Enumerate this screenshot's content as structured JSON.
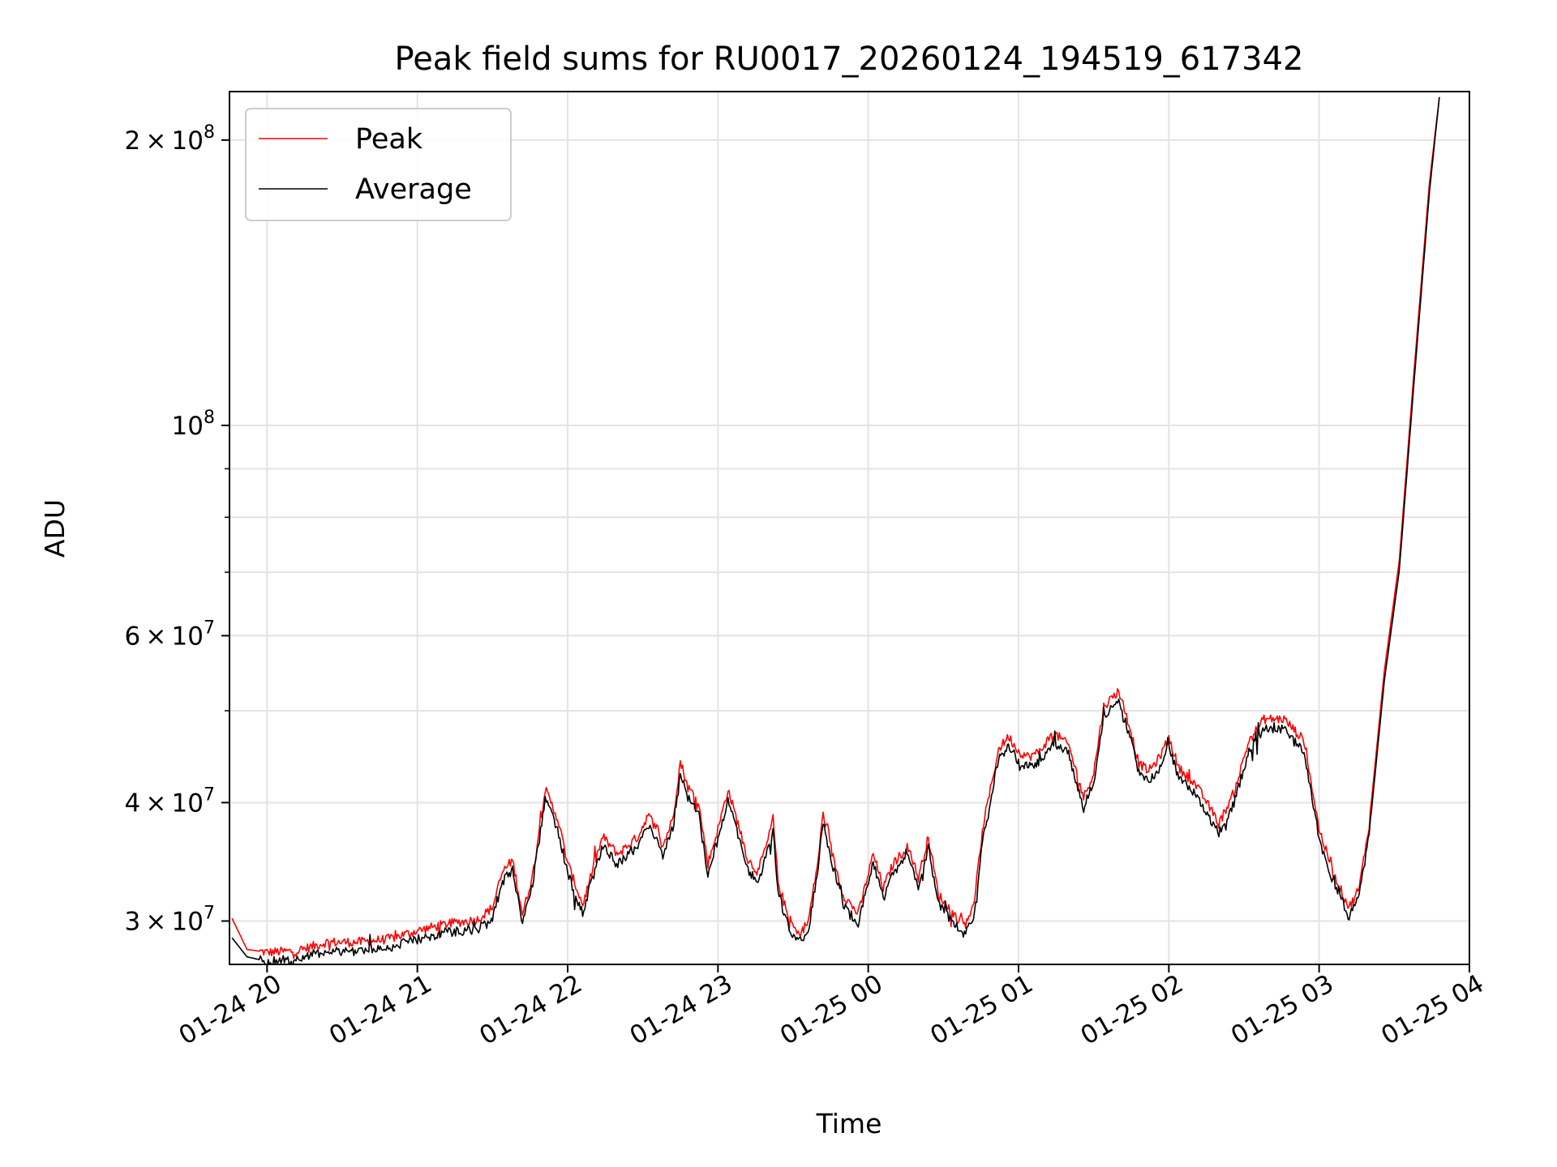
{
  "chart_data": {
    "type": "line",
    "title": "Peak field sums for RU0017_20260124_194519_617342",
    "xlabel": "Time",
    "ylabel": "ADU",
    "x_scale": "time",
    "y_scale": "log",
    "xlim": [
      "2026-01-24 19:45",
      "2026-01-25 04:00"
    ],
    "ylim": [
      27000000,
      225000000
    ],
    "grid": true,
    "legend_position": "top-left",
    "x_ticks": [
      {
        "value": "2026-01-24 20:00",
        "label": "01-24 20"
      },
      {
        "value": "2026-01-24 21:00",
        "label": "01-24 21"
      },
      {
        "value": "2026-01-24 22:00",
        "label": "01-24 22"
      },
      {
        "value": "2026-01-24 23:00",
        "label": "01-24 23"
      },
      {
        "value": "2026-01-25 00:00",
        "label": "01-25 00"
      },
      {
        "value": "2026-01-25 01:00",
        "label": "01-25 01"
      },
      {
        "value": "2026-01-25 02:00",
        "label": "01-25 02"
      },
      {
        "value": "2026-01-25 03:00",
        "label": "01-25 03"
      },
      {
        "value": "2026-01-25 04:00",
        "label": "01-25 04"
      }
    ],
    "y_ticks": [
      {
        "value": 30000000,
        "mant": "3",
        "exp": "7"
      },
      {
        "value": 40000000,
        "mant": "4",
        "exp": "7"
      },
      {
        "value": 60000000,
        "mant": "6",
        "exp": "7"
      },
      {
        "value": 100000000,
        "mant": "",
        "exp": "8"
      },
      {
        "value": 200000000,
        "mant": "2",
        "exp": "8"
      }
    ],
    "y_minor_ticks": [
      50000000,
      70000000,
      80000000,
      90000000
    ],
    "series": [
      {
        "name": "Peak",
        "color": "#ff0000",
        "points": [
          [
            "2026-01-24 19:46",
            30200000
          ],
          [
            "2026-01-24 19:52",
            28000000
          ],
          [
            "2026-01-24 20:00",
            27800000
          ],
          [
            "2026-01-24 20:12",
            27900000
          ],
          [
            "2026-01-24 20:24",
            28500000
          ],
          [
            "2026-01-24 20:36",
            28500000
          ],
          [
            "2026-01-24 20:48",
            28700000
          ],
          [
            "2026-01-24 21:00",
            29300000
          ],
          [
            "2026-01-24 21:12",
            29800000
          ],
          [
            "2026-01-24 21:24",
            30100000
          ],
          [
            "2026-01-24 21:30",
            31000000
          ],
          [
            "2026-01-24 21:34",
            33800000
          ],
          [
            "2026-01-24 21:38",
            34800000
          ],
          [
            "2026-01-24 21:42",
            30500000
          ],
          [
            "2026-01-24 21:46",
            33500000
          ],
          [
            "2026-01-24 21:51",
            41300000
          ],
          [
            "2026-01-24 21:56",
            38500000
          ],
          [
            "2026-01-24 22:00",
            34500000
          ],
          [
            "2026-01-24 22:06",
            31200000
          ],
          [
            "2026-01-24 22:10",
            34000000
          ],
          [
            "2026-01-24 22:14",
            36800000
          ],
          [
            "2026-01-24 22:20",
            35300000
          ],
          [
            "2026-01-24 22:28",
            36800000
          ],
          [
            "2026-01-24 22:32",
            38800000
          ],
          [
            "2026-01-24 22:36",
            37500000
          ],
          [
            "2026-01-24 22:38",
            36000000
          ],
          [
            "2026-01-24 22:42",
            38500000
          ],
          [
            "2026-01-24 22:45",
            44200000
          ],
          [
            "2026-01-24 22:48",
            41500000
          ],
          [
            "2026-01-24 22:52",
            40300000
          ],
          [
            "2026-01-24 22:56",
            34500000
          ],
          [
            "2026-01-24 23:00",
            37500000
          ],
          [
            "2026-01-24 23:04",
            41300000
          ],
          [
            "2026-01-24 23:08",
            38000000
          ],
          [
            "2026-01-24 23:12",
            34800000
          ],
          [
            "2026-01-24 23:16",
            33800000
          ],
          [
            "2026-01-24 23:20",
            36500000
          ],
          [
            "2026-01-24 23:22",
            38500000
          ],
          [
            "2026-01-24 23:24",
            33000000
          ],
          [
            "2026-01-24 23:28",
            30300000
          ],
          [
            "2026-01-24 23:32",
            29000000
          ],
          [
            "2026-01-24 23:36",
            29900000
          ],
          [
            "2026-01-24 23:40",
            34800000
          ],
          [
            "2026-01-24 23:42",
            39000000
          ],
          [
            "2026-01-24 23:46",
            35000000
          ],
          [
            "2026-01-24 23:50",
            32000000
          ],
          [
            "2026-01-24 23:56",
            30500000
          ],
          [
            "2026-01-25 00:02",
            35300000
          ],
          [
            "2026-01-25 00:06",
            32500000
          ],
          [
            "2026-01-25 00:10",
            34500000
          ],
          [
            "2026-01-25 00:16",
            36000000
          ],
          [
            "2026-01-25 00:20",
            33300000
          ],
          [
            "2026-01-25 00:24",
            36800000
          ],
          [
            "2026-01-25 00:28",
            32000000
          ],
          [
            "2026-01-25 00:34",
            30500000
          ],
          [
            "2026-01-25 00:38",
            29800000
          ],
          [
            "2026-01-25 00:42",
            31000000
          ],
          [
            "2026-01-25 00:46",
            38000000
          ],
          [
            "2026-01-25 00:52",
            45500000
          ],
          [
            "2026-01-25 00:56",
            47000000
          ],
          [
            "2026-01-25 01:00",
            45300000
          ],
          [
            "2026-01-25 01:04",
            44700000
          ],
          [
            "2026-01-25 01:08",
            45200000
          ],
          [
            "2026-01-25 01:14",
            47400000
          ],
          [
            "2026-01-25 01:20",
            46000000
          ],
          [
            "2026-01-25 01:26",
            40500000
          ],
          [
            "2026-01-25 01:30",
            43000000
          ],
          [
            "2026-01-25 01:34",
            50500000
          ],
          [
            "2026-01-25 01:40",
            52500000
          ],
          [
            "2026-01-25 01:44",
            48500000
          ],
          [
            "2026-01-25 01:48",
            44000000
          ],
          [
            "2026-01-25 01:52",
            43200000
          ],
          [
            "2026-01-25 01:56",
            44500000
          ],
          [
            "2026-01-25 02:00",
            46800000
          ],
          [
            "2026-01-25 02:04",
            43500000
          ],
          [
            "2026-01-25 02:10",
            42000000
          ],
          [
            "2026-01-25 02:14",
            40500000
          ],
          [
            "2026-01-25 02:20",
            38000000
          ],
          [
            "2026-01-25 02:26",
            41000000
          ],
          [
            "2026-01-25 02:32",
            46500000
          ],
          [
            "2026-01-25 02:38",
            49000000
          ],
          [
            "2026-01-25 02:46",
            49000000
          ],
          [
            "2026-01-25 02:54",
            46500000
          ],
          [
            "2026-01-25 03:00",
            37500000
          ],
          [
            "2026-01-25 03:06",
            33500000
          ],
          [
            "2026-01-25 03:12",
            31000000
          ],
          [
            "2026-01-25 03:16",
            32500000
          ],
          [
            "2026-01-25 03:20",
            38000000
          ],
          [
            "2026-01-25 03:26",
            55000000
          ],
          [
            "2026-01-25 03:32",
            72000000
          ],
          [
            "2026-01-25 03:38",
            115000000
          ],
          [
            "2026-01-25 03:44",
            180000000
          ],
          [
            "2026-01-25 03:48",
            222000000
          ]
        ]
      },
      {
        "name": "Average",
        "color": "#000000",
        "points": [
          [
            "2026-01-24 19:46",
            28800000
          ],
          [
            "2026-01-24 19:52",
            27500000
          ],
          [
            "2026-01-24 20:00",
            27200000
          ],
          [
            "2026-01-24 20:12",
            27400000
          ],
          [
            "2026-01-24 20:24",
            27900000
          ],
          [
            "2026-01-24 20:36",
            27900000
          ],
          [
            "2026-01-24 20:48",
            28100000
          ],
          [
            "2026-01-24 21:00",
            28700000
          ],
          [
            "2026-01-24 21:12",
            29200000
          ],
          [
            "2026-01-24 21:24",
            29400000
          ],
          [
            "2026-01-24 21:30",
            30300000
          ],
          [
            "2026-01-24 21:34",
            33000000
          ],
          [
            "2026-01-24 21:38",
            34000000
          ],
          [
            "2026-01-24 21:42",
            29900000
          ],
          [
            "2026-01-24 21:46",
            32800000
          ],
          [
            "2026-01-24 21:51",
            40300000
          ],
          [
            "2026-01-24 21:56",
            37600000
          ],
          [
            "2026-01-24 22:00",
            33700000
          ],
          [
            "2026-01-24 22:06",
            30500000
          ],
          [
            "2026-01-24 22:10",
            33200000
          ],
          [
            "2026-01-24 22:14",
            35900000
          ],
          [
            "2026-01-24 22:20",
            34500000
          ],
          [
            "2026-01-24 22:28",
            35900000
          ],
          [
            "2026-01-24 22:32",
            37900000
          ],
          [
            "2026-01-24 22:36",
            36600000
          ],
          [
            "2026-01-24 22:38",
            35200000
          ],
          [
            "2026-01-24 22:42",
            37600000
          ],
          [
            "2026-01-24 22:45",
            43100000
          ],
          [
            "2026-01-24 22:48",
            40500000
          ],
          [
            "2026-01-24 22:52",
            39300000
          ],
          [
            "2026-01-24 22:56",
            33700000
          ],
          [
            "2026-01-24 23:00",
            36600000
          ],
          [
            "2026-01-24 23:04",
            40300000
          ],
          [
            "2026-01-24 23:08",
            37100000
          ],
          [
            "2026-01-24 23:12",
            34000000
          ],
          [
            "2026-01-24 23:16",
            33000000
          ],
          [
            "2026-01-24 23:20",
            35600000
          ],
          [
            "2026-01-24 23:22",
            37600000
          ],
          [
            "2026-01-24 23:24",
            32200000
          ],
          [
            "2026-01-24 23:28",
            29600000
          ],
          [
            "2026-01-24 23:32",
            28400000
          ],
          [
            "2026-01-24 23:36",
            29300000
          ],
          [
            "2026-01-24 23:40",
            34000000
          ],
          [
            "2026-01-24 23:42",
            38100000
          ],
          [
            "2026-01-24 23:46",
            34200000
          ],
          [
            "2026-01-24 23:50",
            31300000
          ],
          [
            "2026-01-24 23:56",
            29800000
          ],
          [
            "2026-01-25 00:02",
            34500000
          ],
          [
            "2026-01-25 00:06",
            31700000
          ],
          [
            "2026-01-25 00:10",
            33700000
          ],
          [
            "2026-01-25 00:16",
            35200000
          ],
          [
            "2026-01-25 00:20",
            32500000
          ],
          [
            "2026-01-25 00:24",
            35900000
          ],
          [
            "2026-01-25 00:28",
            31300000
          ],
          [
            "2026-01-25 00:34",
            29800000
          ],
          [
            "2026-01-25 00:38",
            29100000
          ],
          [
            "2026-01-25 00:42",
            30300000
          ],
          [
            "2026-01-25 00:46",
            37100000
          ],
          [
            "2026-01-25 00:52",
            44400000
          ],
          [
            "2026-01-25 00:56",
            45900000
          ],
          [
            "2026-01-25 01:00",
            44200000
          ],
          [
            "2026-01-25 01:04",
            43600000
          ],
          [
            "2026-01-25 01:08",
            44100000
          ],
          [
            "2026-01-25 01:14",
            46300000
          ],
          [
            "2026-01-25 01:20",
            44900000
          ],
          [
            "2026-01-25 01:26",
            39500000
          ],
          [
            "2026-01-25 01:30",
            42000000
          ],
          [
            "2026-01-25 01:34",
            49300000
          ],
          [
            "2026-01-25 01:40",
            51300000
          ],
          [
            "2026-01-25 01:44",
            47400000
          ],
          [
            "2026-01-25 01:48",
            43000000
          ],
          [
            "2026-01-25 01:52",
            42200000
          ],
          [
            "2026-01-25 01:56",
            43400000
          ],
          [
            "2026-01-25 02:00",
            45700000
          ],
          [
            "2026-01-25 02:04",
            42500000
          ],
          [
            "2026-01-25 02:10",
            41000000
          ],
          [
            "2026-01-25 02:14",
            39500000
          ],
          [
            "2026-01-25 02:20",
            37100000
          ],
          [
            "2026-01-25 02:26",
            40000000
          ],
          [
            "2026-01-25 02:32",
            45400000
          ],
          [
            "2026-01-25 02:38",
            47900000
          ],
          [
            "2026-01-25 02:46",
            47900000
          ],
          [
            "2026-01-25 02:54",
            45400000
          ],
          [
            "2026-01-25 03:00",
            36600000
          ],
          [
            "2026-01-25 03:06",
            32700000
          ],
          [
            "2026-01-25 03:12",
            30300000
          ],
          [
            "2026-01-25 03:16",
            31700000
          ],
          [
            "2026-01-25 03:20",
            37100000
          ],
          [
            "2026-01-25 03:26",
            53700000
          ],
          [
            "2026-01-25 03:32",
            70300000
          ],
          [
            "2026-01-25 03:38",
            112000000
          ],
          [
            "2026-01-25 03:44",
            176000000
          ],
          [
            "2026-01-25 03:48",
            222000000
          ]
        ]
      }
    ]
  }
}
